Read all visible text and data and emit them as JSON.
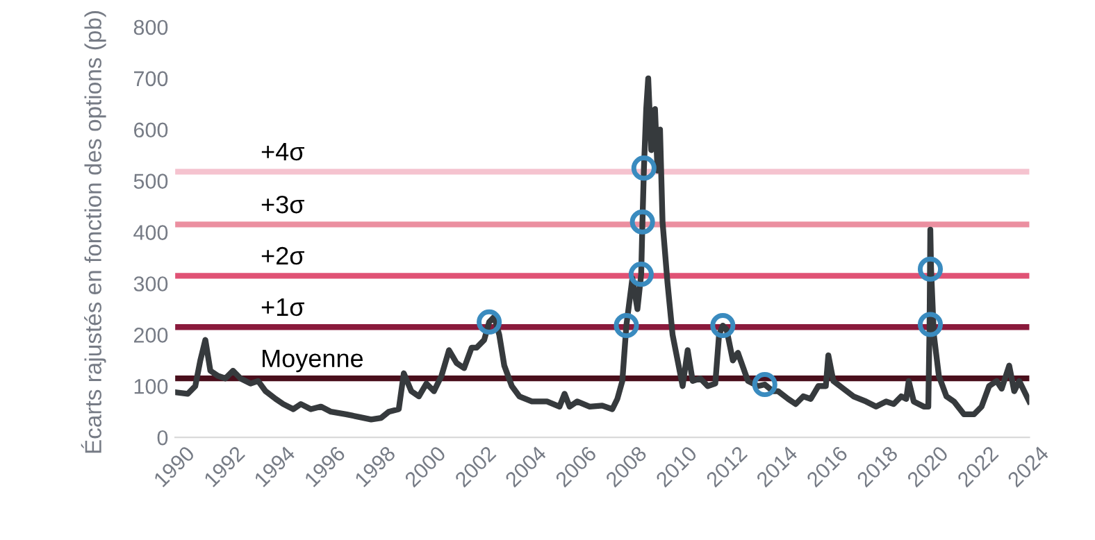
{
  "chart_data": {
    "type": "line",
    "ylabel": "Écarts rajustés en fonction des options (pb)",
    "xlim": [
      1990,
      2024
    ],
    "xticks": [
      1990,
      1992,
      1994,
      1996,
      1998,
      2000,
      2002,
      2004,
      2006,
      2008,
      2010,
      2012,
      2014,
      2016,
      2018,
      2020,
      2022,
      2024
    ],
    "ylim": [
      0,
      800
    ],
    "yticks": [
      0,
      100,
      200,
      300,
      400,
      500,
      600,
      700,
      800
    ],
    "grid": false,
    "legend": false,
    "ref_lines": [
      {
        "axis": "y",
        "value": 115,
        "label": "Moyenne",
        "color": "#4a0f1c"
      },
      {
        "axis": "y",
        "value": 215,
        "label": "+1σ",
        "color": "#8a1a3c"
      },
      {
        "axis": "y",
        "value": 315,
        "label": "+2σ",
        "color": "#e05275"
      },
      {
        "axis": "y",
        "value": 415,
        "label": "+3σ",
        "color": "#eb8fa0"
      },
      {
        "axis": "y",
        "value": 518,
        "label": "+4σ",
        "color": "#f5c3cf"
      }
    ],
    "series": [
      {
        "color": "#363a3d",
        "marker": "none",
        "x": [
          1990,
          1990.5,
          1990.8,
          1991.0,
          1991.2,
          1991.4,
          1991.7,
          1992.0,
          1992.3,
          1992.6,
          1993.0,
          1993.3,
          1993.6,
          1994.0,
          1994.3,
          1994.7,
          1995.0,
          1995.4,
          1995.8,
          1996.2,
          1996.8,
          1997.3,
          1997.8,
          1998.2,
          1998.5,
          1998.9,
          1999.1,
          1999.4,
          1999.7,
          2000.0,
          2000.3,
          2000.6,
          2000.9,
          2001.2,
          2001.5,
          2001.8,
          2002.0,
          2002.3,
          2002.5,
          2002.7,
          2002.9,
          2003.1,
          2003.4,
          2003.7,
          2004.2,
          2004.8,
          2005.3,
          2005.5,
          2005.7,
          2006.0,
          2006.5,
          2007.0,
          2007.4,
          2007.6,
          2007.8,
          2007.96,
          2008.2,
          2008.4,
          2008.55,
          2008.6,
          2008.66,
          2008.75,
          2008.83,
          2008.95,
          2009.1,
          2009.2,
          2009.3,
          2009.4,
          2009.6,
          2009.8,
          2010.0,
          2010.2,
          2010.4,
          2010.6,
          2010.9,
          2011.2,
          2011.5,
          2011.65,
          2011.8,
          2011.95,
          2012.2,
          2012.4,
          2012.8,
          2013.2,
          2013.47,
          2013.8,
          2014.0,
          2014.4,
          2014.7,
          2015.0,
          2015.3,
          2015.6,
          2015.9,
          2016.0,
          2016.2,
          2016.6,
          2017.0,
          2017.5,
          2017.9,
          2018.3,
          2018.6,
          2018.9,
          2019.1,
          2019.2,
          2019.4,
          2019.8,
          2019.98,
          2020.03,
          2020.06,
          2020.09,
          2020.2,
          2020.4,
          2020.7,
          2021.0,
          2021.4,
          2021.8,
          2022.1,
          2022.4,
          2022.7,
          2022.9,
          2023.2,
          2023.4,
          2023.6,
          2023.9,
          2024.0
        ],
        "values": [
          88,
          85,
          100,
          150,
          190,
          130,
          120,
          115,
          130,
          115,
          105,
          110,
          90,
          75,
          65,
          55,
          65,
          55,
          60,
          50,
          45,
          40,
          35,
          38,
          50,
          55,
          125,
          90,
          80,
          105,
          90,
          120,
          170,
          145,
          135,
          175,
          175,
          190,
          225,
          235,
          200,
          140,
          100,
          80,
          70,
          70,
          60,
          85,
          60,
          70,
          60,
          62,
          55,
          75,
          110,
          218,
          310,
          250,
          318,
          420,
          525,
          640,
          700,
          560,
          640,
          520,
          600,
          420,
          300,
          200,
          150,
          100,
          170,
          110,
          115,
          100,
          105,
          200,
          218,
          210,
          150,
          165,
          110,
          100,
          103,
          90,
          90,
          75,
          65,
          80,
          75,
          100,
          100,
          160,
          110,
          95,
          80,
          70,
          60,
          70,
          65,
          80,
          75,
          110,
          70,
          60,
          60,
          220,
          405,
          328,
          200,
          120,
          80,
          70,
          45,
          45,
          60,
          100,
          110,
          95,
          140,
          90,
          110,
          80,
          70
        ]
      },
      {
        "type": "scatter",
        "color": "#3a8bbf",
        "marker": "circle",
        "x": [
          2002.5,
          2007.96,
          2008.55,
          2008.6,
          2008.66,
          2011.8,
          2013.47,
          2020.06,
          2020.06
        ],
        "values": [
          225,
          218,
          318,
          420,
          525,
          218,
          103,
          328,
          220
        ]
      }
    ]
  }
}
